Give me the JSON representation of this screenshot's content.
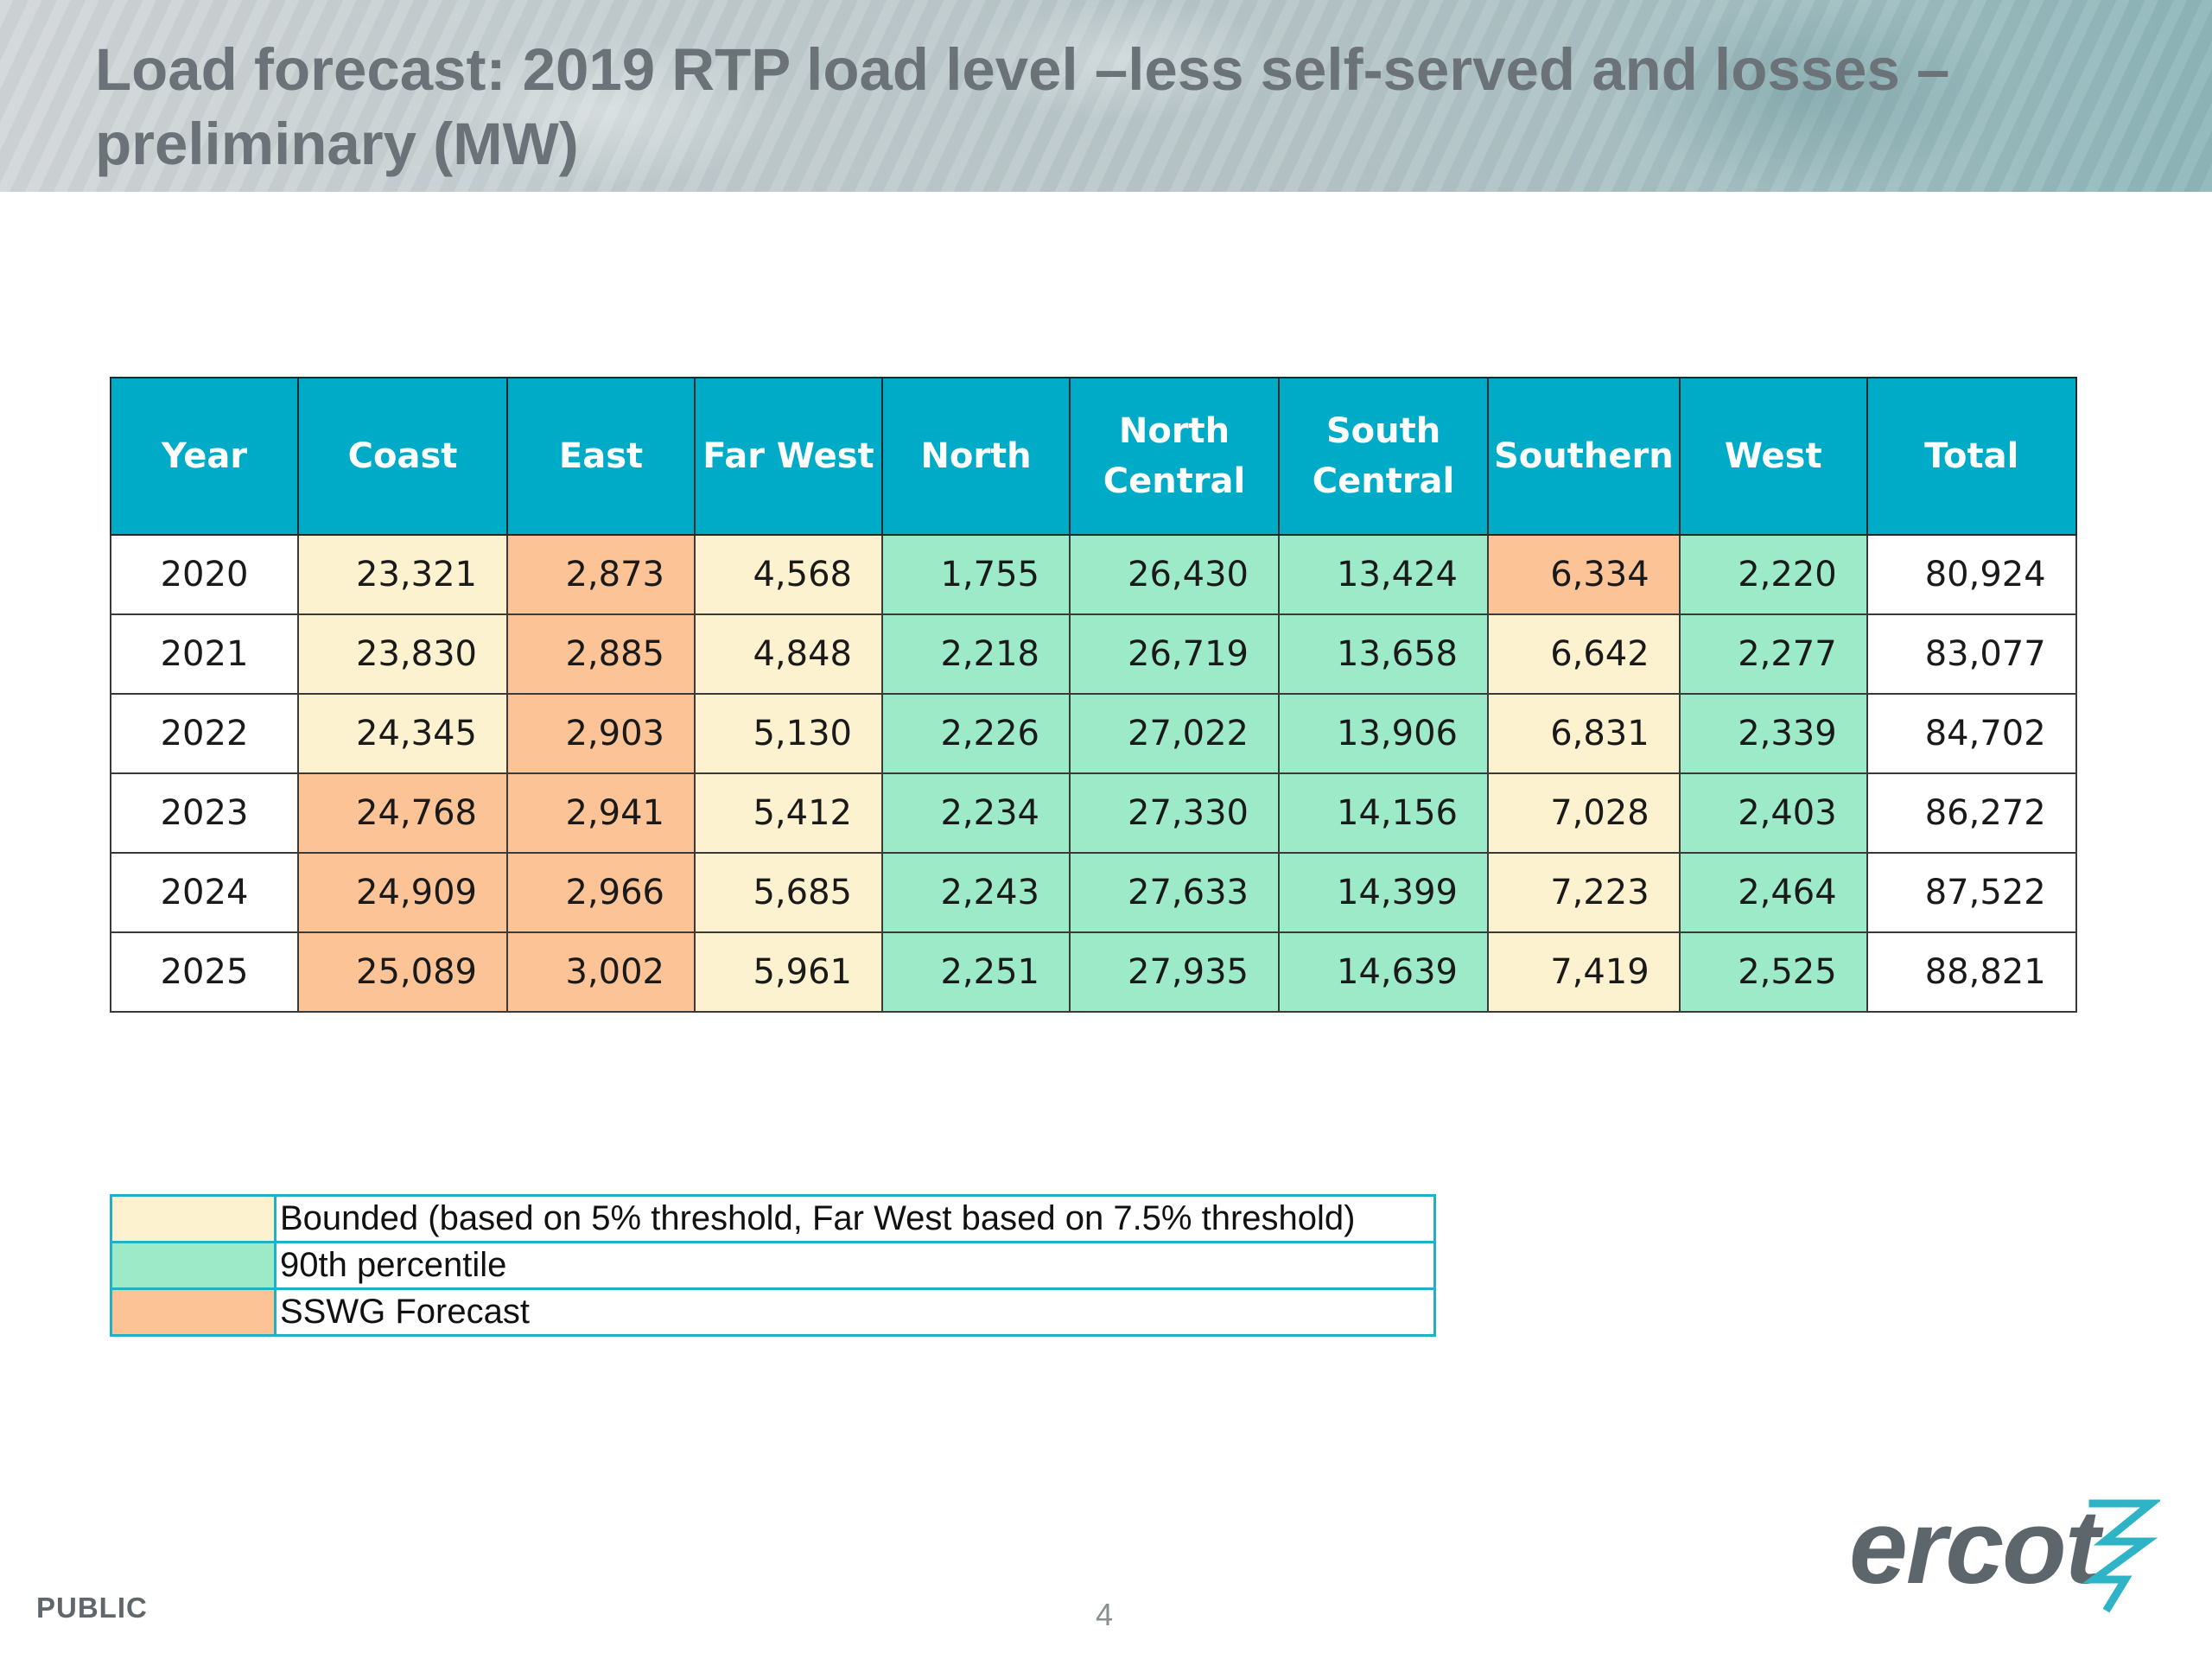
{
  "header": {
    "title": "Load forecast: 2019 RTP load level –less self-served and losses – preliminary (MW)"
  },
  "table": {
    "columns": [
      "Year",
      "Coast",
      "East",
      "Far West",
      "North",
      "North Central",
      "South Central",
      "Southern",
      "West",
      "Total"
    ],
    "rows": [
      {
        "year": "2020",
        "cells": [
          {
            "value": "23,321",
            "category": "bounded"
          },
          {
            "value": "2,873",
            "category": "sswg"
          },
          {
            "value": "4,568",
            "category": "bounded"
          },
          {
            "value": "1,755",
            "category": "p90"
          },
          {
            "value": "26,430",
            "category": "p90"
          },
          {
            "value": "13,424",
            "category": "p90"
          },
          {
            "value": "6,334",
            "category": "sswg"
          },
          {
            "value": "2,220",
            "category": "p90"
          }
        ],
        "total": "80,924"
      },
      {
        "year": "2021",
        "cells": [
          {
            "value": "23,830",
            "category": "bounded"
          },
          {
            "value": "2,885",
            "category": "sswg"
          },
          {
            "value": "4,848",
            "category": "bounded"
          },
          {
            "value": "2,218",
            "category": "p90"
          },
          {
            "value": "26,719",
            "category": "p90"
          },
          {
            "value": "13,658",
            "category": "p90"
          },
          {
            "value": "6,642",
            "category": "bounded"
          },
          {
            "value": "2,277",
            "category": "p90"
          }
        ],
        "total": "83,077"
      },
      {
        "year": "2022",
        "cells": [
          {
            "value": "24,345",
            "category": "bounded"
          },
          {
            "value": "2,903",
            "category": "sswg"
          },
          {
            "value": "5,130",
            "category": "bounded"
          },
          {
            "value": "2,226",
            "category": "p90"
          },
          {
            "value": "27,022",
            "category": "p90"
          },
          {
            "value": "13,906",
            "category": "p90"
          },
          {
            "value": "6,831",
            "category": "bounded"
          },
          {
            "value": "2,339",
            "category": "p90"
          }
        ],
        "total": "84,702"
      },
      {
        "year": "2023",
        "cells": [
          {
            "value": "24,768",
            "category": "sswg"
          },
          {
            "value": "2,941",
            "category": "sswg"
          },
          {
            "value": "5,412",
            "category": "bounded"
          },
          {
            "value": "2,234",
            "category": "p90"
          },
          {
            "value": "27,330",
            "category": "p90"
          },
          {
            "value": "14,156",
            "category": "p90"
          },
          {
            "value": "7,028",
            "category": "bounded"
          },
          {
            "value": "2,403",
            "category": "p90"
          }
        ],
        "total": "86,272"
      },
      {
        "year": "2024",
        "cells": [
          {
            "value": "24,909",
            "category": "sswg"
          },
          {
            "value": "2,966",
            "category": "sswg"
          },
          {
            "value": "5,685",
            "category": "bounded"
          },
          {
            "value": "2,243",
            "category": "p90"
          },
          {
            "value": "27,633",
            "category": "p90"
          },
          {
            "value": "14,399",
            "category": "p90"
          },
          {
            "value": "7,223",
            "category": "bounded"
          },
          {
            "value": "2,464",
            "category": "p90"
          }
        ],
        "total": "87,522"
      },
      {
        "year": "2025",
        "cells": [
          {
            "value": "25,089",
            "category": "sswg"
          },
          {
            "value": "3,002",
            "category": "sswg"
          },
          {
            "value": "5,961",
            "category": "bounded"
          },
          {
            "value": "2,251",
            "category": "p90"
          },
          {
            "value": "27,935",
            "category": "p90"
          },
          {
            "value": "14,639",
            "category": "p90"
          },
          {
            "value": "7,419",
            "category": "bounded"
          },
          {
            "value": "2,525",
            "category": "p90"
          }
        ],
        "total": "88,821"
      }
    ]
  },
  "legend": [
    {
      "category": "bounded",
      "label": "Bounded (based on 5% threshold, Far West based on 7.5% threshold)"
    },
    {
      "category": "p90",
      "label": "90th percentile"
    },
    {
      "category": "sswg",
      "label": "SSWG Forecast"
    }
  ],
  "colors": {
    "header_fill": "#00abc8",
    "bounded": "#fdf2cf",
    "p90": "#9deac9",
    "sswg": "#fbc396",
    "legend_border": "#1fb1c6"
  },
  "footer": {
    "classification": "PUBLIC",
    "page_number": "4"
  },
  "logo": {
    "text": "ercot",
    "icon": "ercot-lightning-icon"
  }
}
